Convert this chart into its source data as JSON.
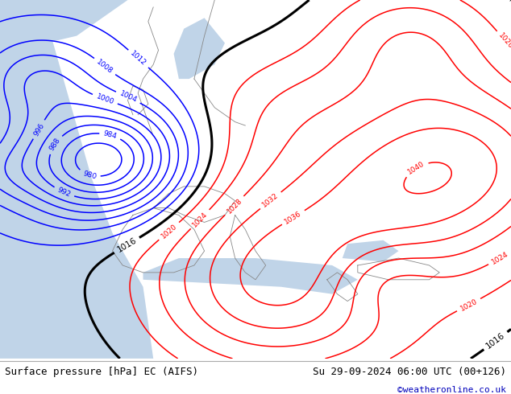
{
  "title_left": "Surface pressure [hPa] EC (AIFS)",
  "title_right": "Su 29-09-2024 06:00 UTC (00+126)",
  "watermark": "©weatheronline.co.uk",
  "bg_map_color": "#daeeda",
  "bg_ocean_color": "#c0d4e8",
  "footer_bg": "#efefef",
  "footer_text_color": "#000000",
  "watermark_color": "#0000bb",
  "fig_width": 6.34,
  "fig_height": 4.9,
  "dpi": 100
}
